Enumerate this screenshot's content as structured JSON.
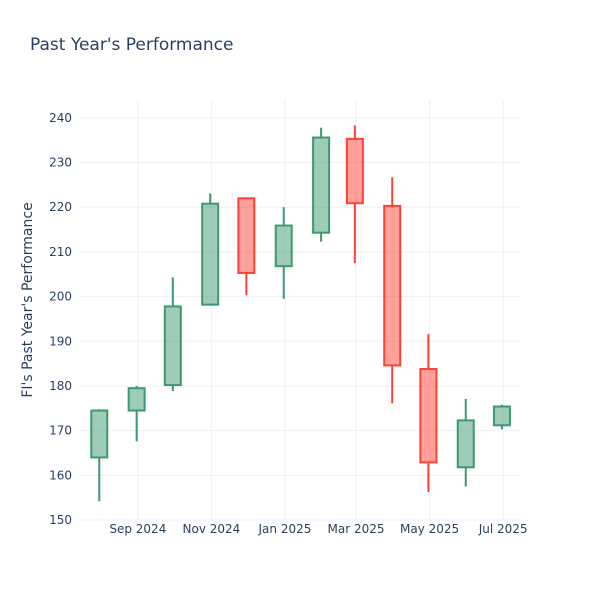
{
  "chart_data": {
    "type": "candlestick",
    "title": "Past Year's Performance",
    "ylabel": "FI's Past Year's Performance",
    "xlabel": "",
    "ylim": [
      150,
      244
    ],
    "xlim": [
      "2024-07-15",
      "2025-07-15"
    ],
    "yticks": [
      150,
      160,
      170,
      180,
      190,
      200,
      210,
      220,
      230,
      240
    ],
    "xticks": [
      {
        "date": "2024-09-01",
        "label": "Sep 2024"
      },
      {
        "date": "2024-11-01",
        "label": "Nov 2024"
      },
      {
        "date": "2025-01-01",
        "label": "Jan 2025"
      },
      {
        "date": "2025-03-01",
        "label": "Mar 2025"
      },
      {
        "date": "2025-05-01",
        "label": "May 2025"
      },
      {
        "date": "2025-07-01",
        "label": "Jul 2025"
      }
    ],
    "grid": true,
    "colors": {
      "increasing_line": "#3d9970",
      "increasing_fill": "rgba(61,153,112,0.5)",
      "decreasing_line": "#ff4136",
      "decreasing_fill": "rgba(255,65,54,0.5)"
    },
    "candles": [
      {
        "date": "2024-07-31",
        "open": 164.0,
        "high": 174.8,
        "low": 154.2,
        "close": 174.5
      },
      {
        "date": "2024-08-31",
        "open": 174.5,
        "high": 180.0,
        "low": 167.6,
        "close": 179.5
      },
      {
        "date": "2024-09-30",
        "open": 180.2,
        "high": 204.3,
        "low": 178.9,
        "close": 197.8
      },
      {
        "date": "2024-10-31",
        "open": 198.2,
        "high": 223.1,
        "low": 198.0,
        "close": 220.8
      },
      {
        "date": "2024-11-30",
        "open": 222.0,
        "high": 222.0,
        "low": 200.3,
        "close": 205.3
      },
      {
        "date": "2024-12-31",
        "open": 206.8,
        "high": 220.0,
        "low": 199.5,
        "close": 215.9
      },
      {
        "date": "2025-01-31",
        "open": 214.3,
        "high": 237.8,
        "low": 212.3,
        "close": 235.6
      },
      {
        "date": "2025-02-28",
        "open": 235.3,
        "high": 238.3,
        "low": 207.5,
        "close": 220.9
      },
      {
        "date": "2025-03-31",
        "open": 220.3,
        "high": 226.7,
        "low": 176.1,
        "close": 184.6
      },
      {
        "date": "2025-04-30",
        "open": 183.8,
        "high": 191.6,
        "low": 156.3,
        "close": 162.9
      },
      {
        "date": "2025-05-31",
        "open": 161.8,
        "high": 177.1,
        "low": 157.5,
        "close": 172.3
      },
      {
        "date": "2025-06-30",
        "open": 171.2,
        "high": 175.8,
        "low": 170.3,
        "close": 175.4
      }
    ]
  }
}
